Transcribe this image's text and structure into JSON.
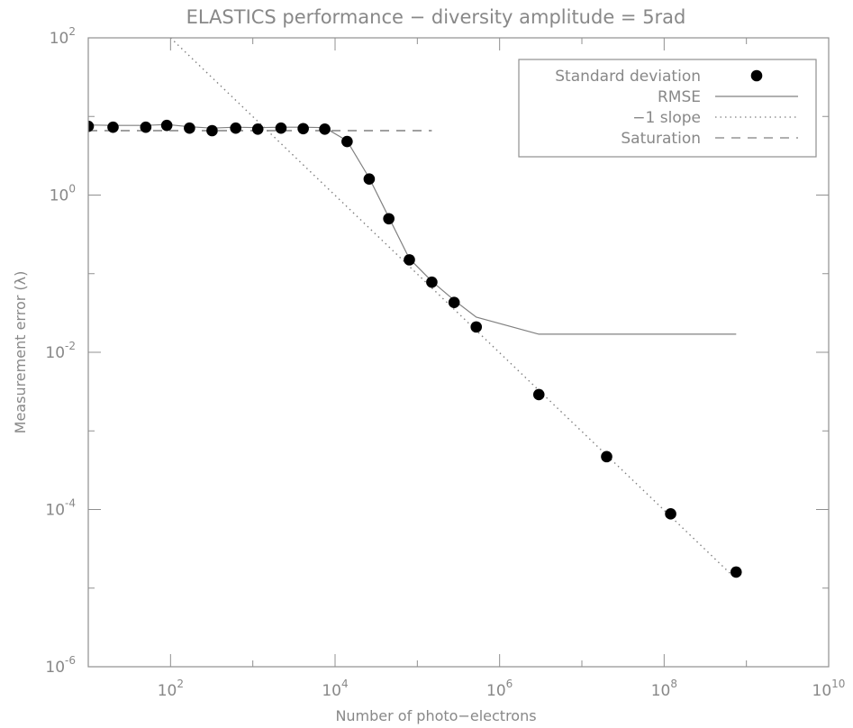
{
  "chart_data": {
    "type": "scatter",
    "title": "ELASTICS performance − diversity amplitude = 5rad",
    "xlabel": "Number of photo−electrons",
    "ylabel": "Measurement error (λ)",
    "x_scale": "log",
    "y_scale": "log",
    "xlim": [
      10,
      10000000000
    ],
    "ylim": [
      1e-06,
      100
    ],
    "x_ticks": [
      {
        "value": 100,
        "base": "10",
        "exp": "2"
      },
      {
        "value": 10000,
        "base": "10",
        "exp": "4"
      },
      {
        "value": 1000000,
        "base": "10",
        "exp": "6"
      },
      {
        "value": 100000000,
        "base": "10",
        "exp": "8"
      },
      {
        "value": 10000000000,
        "base": "10",
        "exp": "10"
      }
    ],
    "y_ticks": [
      {
        "value": 100,
        "base": "10",
        "exp": "2"
      },
      {
        "value": 1,
        "base": "10",
        "exp": "0"
      },
      {
        "value": 0.01,
        "base": "10",
        "exp": "-2"
      },
      {
        "value": 0.0001,
        "base": "10",
        "exp": "-4"
      },
      {
        "value": 1e-06,
        "base": "10",
        "exp": "-6"
      }
    ],
    "grid": false,
    "legend": {
      "position": "top-right",
      "entries": [
        {
          "label": "Standard deviation",
          "style": "dot"
        },
        {
          "label": "RMSE",
          "style": "solid"
        },
        {
          "label": "−1 slope",
          "style": "dotted"
        },
        {
          "label": "Saturation",
          "style": "dashed"
        }
      ]
    },
    "series": [
      {
        "name": "Standard deviation",
        "style": "dot",
        "x": [
          10,
          20,
          50,
          90,
          170,
          320,
          620,
          1150,
          2200,
          4100,
          7500,
          14000,
          26000,
          45000,
          80000,
          150000,
          280000,
          520000,
          3000000,
          20000000,
          120000000,
          750000000
        ],
        "y": [
          7.5,
          7.3,
          7.3,
          7.7,
          7.1,
          6.6,
          7.1,
          6.9,
          7.1,
          7.0,
          6.9,
          4.8,
          1.6,
          0.5,
          0.15,
          0.078,
          0.043,
          0.021,
          0.0029,
          0.00047,
          8.8e-05,
          1.6e-05
        ]
      },
      {
        "name": "RMSE",
        "style": "solid",
        "x": [
          10,
          20,
          50,
          90,
          170,
          320,
          620,
          1150,
          2200,
          4100,
          7500,
          14000,
          26000,
          45000,
          80000,
          150000,
          280000,
          520000,
          3000000,
          20000000,
          120000000,
          750000000
        ],
        "y": [
          7.8,
          7.7,
          7.7,
          7.9,
          7.4,
          7.1,
          7.3,
          7.2,
          7.3,
          7.3,
          7.2,
          4.9,
          1.65,
          0.52,
          0.155,
          0.08,
          0.046,
          0.028,
          0.017,
          0.017,
          0.017,
          0.017
        ]
      },
      {
        "name": "−1 slope",
        "style": "dotted",
        "x": [
          100,
          750000000
        ],
        "y": [
          100,
          1.3e-05
        ]
      },
      {
        "name": "Saturation",
        "style": "dashed",
        "x": [
          10,
          150000
        ],
        "y": [
          6.6,
          6.6
        ]
      }
    ]
  },
  "colors": {
    "frame": "#909090",
    "text": "#888888",
    "dots": "#000000",
    "lines": "#808080"
  }
}
